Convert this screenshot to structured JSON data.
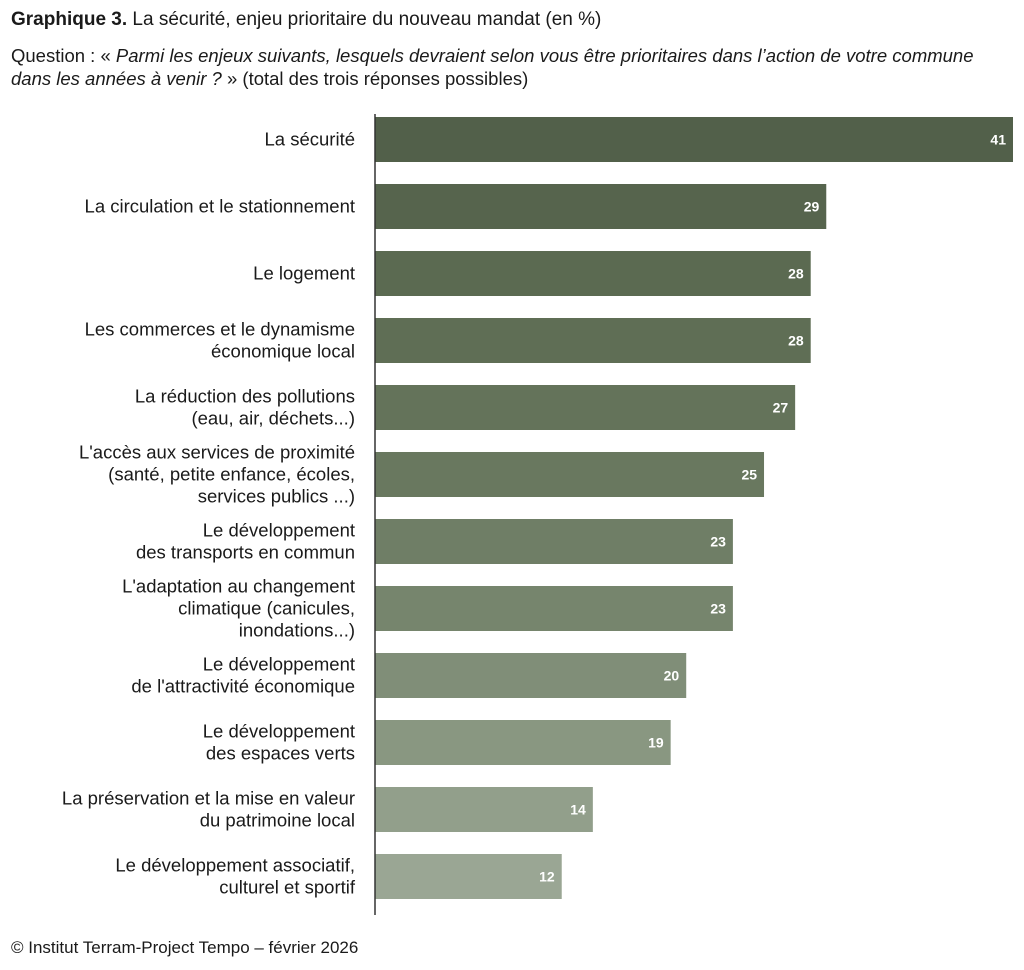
{
  "header": {
    "title_bold": "Graphique 3.",
    "title_rest": " La sécurité, enjeu prioritaire du nouveau mandat (en %)",
    "question_prefix": "Question : « ",
    "question_text": "Parmi les enjeux suivants, lesquels devraient selon vous être prioritaires dans l’action de votre commune dans les années à venir ?",
    "question_suffix": " » (total des trois réponses possibles)"
  },
  "chart_data": {
    "type": "bar",
    "orientation": "horizontal",
    "categories": [
      "La sécurité",
      "La circulation et le stationnement",
      "Le logement",
      "Les commerces et le dynamisme économique local",
      "La réduction des pollutions (eau, air, déchets...)",
      "L'accès aux services de proximité (santé, petite enfance, écoles, services publics ...)",
      "Le développement des transports en commun",
      "L'adaptation au changement climatique (canicules, inondations...)",
      "Le développement de l'attractivité économique",
      "Le développement des espaces verts",
      "La préservation et la mise en valeur du patrimoine local",
      "Le développement associatif, culturel et sportif"
    ],
    "category_lines": [
      [
        "La sécurité"
      ],
      [
        "La circulation et le stationnement"
      ],
      [
        "Le logement"
      ],
      [
        "Les commerces et le dynamisme",
        "économique local"
      ],
      [
        "La réduction des pollutions",
        "(eau, air, déchets...)"
      ],
      [
        "L'accès aux services de proximité",
        "(santé, petite enfance, écoles,",
        "services publics ...)"
      ],
      [
        "Le développement",
        "des transports en commun"
      ],
      [
        "L'adaptation au changement",
        "climatique (canicules,",
        "inondations...)"
      ],
      [
        "Le développement",
        "de l'attractivité économique"
      ],
      [
        "Le développement",
        "des espaces verts"
      ],
      [
        "La préservation et la mise en valeur",
        "du patrimoine local"
      ],
      [
        "Le développement associatif,",
        "culturel et sportif"
      ]
    ],
    "values": [
      41,
      29,
      28,
      28,
      27,
      25,
      23,
      23,
      20,
      19,
      14,
      12
    ],
    "xlim": [
      0,
      41
    ],
    "data_labels": true,
    "grid": false,
    "legend": "none",
    "colors": [
      "#52604a",
      "#56644d",
      "#5b6a51",
      "#5f6e55",
      "#64735a",
      "#69785f",
      "#6f7e66",
      "#76856d",
      "#808e78",
      "#899781",
      "#929f8b",
      "#9aa694"
    ]
  },
  "footer": {
    "source": "© Institut Terram-Project Tempo – février 2026"
  }
}
